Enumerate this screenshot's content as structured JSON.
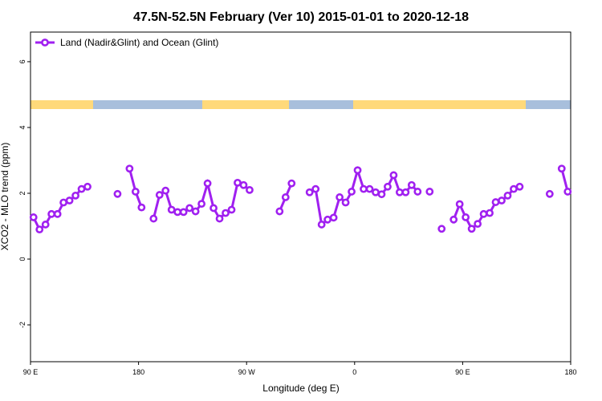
{
  "chart_data": {
    "type": "line",
    "title": "47.5N-52.5N February (Ver 10)   2015-01-01 to 2020-12-18",
    "xlabel": "Longitude (deg E)",
    "ylabel": "XCO2 - MLO trend (ppm)",
    "x": [
      92.5,
      97.5,
      102.5,
      107.5,
      112.5,
      117.5,
      122.5,
      127.5,
      132.5,
      137.5,
      142.5,
      147.5,
      152.5,
      157.5,
      162.5,
      167.5,
      172.5,
      177.5,
      182.5,
      187.5,
      192.5,
      197.5,
      202.5,
      207.5,
      212.5,
      217.5,
      222.5,
      227.5,
      232.5,
      237.5,
      242.5,
      247.5,
      252.5,
      257.5,
      262.5,
      267.5,
      272.5,
      277.5,
      282.5,
      287.5,
      292.5,
      297.5,
      302.5,
      307.5,
      312.5,
      317.5,
      322.5,
      327.5,
      332.5,
      337.5,
      342.5,
      347.5,
      352.5,
      357.5,
      362.5,
      367.5,
      372.5,
      377.5,
      382.5,
      387.5,
      392.5,
      397.5,
      402.5,
      407.5,
      412.5,
      417.5,
      422.5,
      427.5,
      432.5,
      437.5,
      442.5,
      447.5,
      452.5,
      457.5,
      462.5,
      467.5,
      472.5,
      477.5,
      482.5,
      487.5,
      492.5,
      497.5,
      502.5,
      507.5,
      512.5,
      517.5,
      522.5,
      527.5,
      532.5,
      537.5
    ],
    "series": [
      {
        "name": "Land (Nadir&Glint) and Ocean (Glint)",
        "color": "#a020f0",
        "values": [
          1.27,
          0.9,
          1.05,
          1.37,
          1.37,
          1.72,
          1.78,
          1.93,
          2.13,
          2.2,
          null,
          null,
          null,
          null,
          1.98,
          null,
          2.75,
          2.05,
          1.57,
          null,
          1.23,
          1.95,
          2.08,
          1.5,
          1.43,
          1.43,
          1.55,
          1.45,
          1.68,
          2.3,
          1.55,
          1.23,
          1.4,
          1.5,
          2.32,
          2.25,
          2.1,
          null,
          null,
          null,
          null,
          1.45,
          1.88,
          2.3,
          null,
          null,
          2.03,
          2.13,
          1.05,
          1.2,
          1.26,
          1.88,
          1.72,
          2.05,
          2.7,
          2.13,
          2.13,
          2.03,
          1.97,
          2.2,
          2.55,
          2.03,
          2.03,
          2.25,
          2.05,
          null,
          2.05,
          null,
          0.92,
          null,
          1.2,
          1.67,
          1.27,
          0.92,
          1.07,
          1.37,
          1.4,
          1.73,
          1.78,
          1.93,
          2.13,
          2.2,
          null,
          null,
          null,
          null,
          1.98,
          null,
          2.75,
          2.05
        ]
      }
    ],
    "xlim": [
      90,
      540
    ],
    "xticks": [
      {
        "value": 90,
        "label": "90 E"
      },
      180,
      {
        "value": 270,
        "label": "90 W"
      },
      {
        "value": 360,
        "label": "0"
      },
      {
        "value": 450,
        "label": "90 E"
      },
      {
        "value": 540,
        "label": "180"
      }
    ],
    "ylim": [
      -3.12,
      6.9
    ],
    "yticks": [
      -2,
      0,
      2,
      4,
      6
    ],
    "legend": "top-left"
  }
}
